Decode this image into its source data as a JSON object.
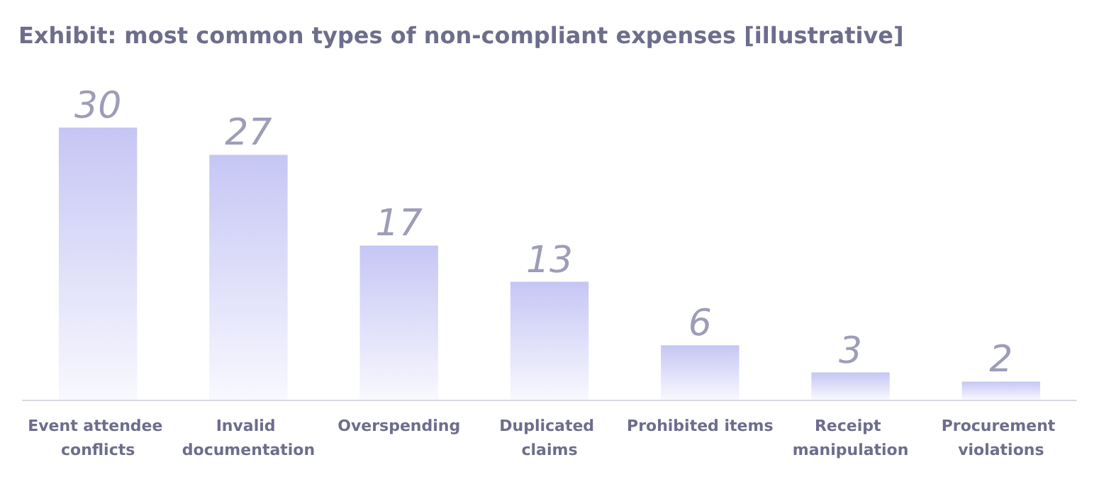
{
  "chart_data": {
    "type": "bar",
    "title": "Exhibit: most common types of non-compliant expenses [illustrative]",
    "categories": [
      "Event attendee conflicts",
      "Invalid documentation",
      "Overspending",
      "Duplicated claims",
      "Prohibited items",
      "Receipt manipulation",
      "Procurement violations"
    ],
    "values": [
      30,
      27,
      17,
      13,
      6,
      3,
      2
    ],
    "color": "#c6c6f5",
    "data_labels": true
  }
}
